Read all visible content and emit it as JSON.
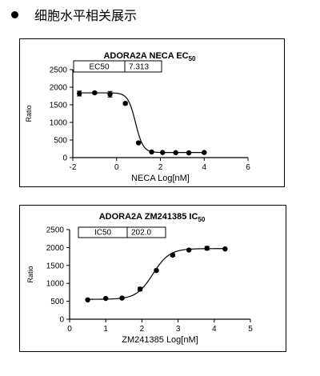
{
  "heading": {
    "text": "细胞水平相关展示"
  },
  "chart_data": [
    {
      "type": "scatter",
      "title": "ADORA2A NECA EC",
      "title_sub": "50",
      "xlabel": "NECA Log[nM]",
      "ylabel": "Ratio",
      "xlim": [
        -2,
        6
      ],
      "ylim": [
        0,
        2500
      ],
      "xticks": [
        -2,
        0,
        2,
        4,
        6
      ],
      "yticks": [
        0,
        500,
        1000,
        1500,
        2000,
        2500
      ],
      "fit_table": {
        "label": "EC50",
        "value": "7.313"
      },
      "curve": {
        "bottom": 145,
        "top": 1840,
        "logEC50": 0.864,
        "hill": -2.5
      },
      "series": [
        {
          "x": [
            -1.7,
            -1.0,
            -0.3,
            0.4,
            1.0,
            1.6,
            2.1,
            2.7,
            3.3,
            4.0
          ],
          "y": [
            1820,
            1840,
            1800,
            1540,
            420,
            160,
            145,
            140,
            135,
            145
          ],
          "err": [
            70,
            30,
            80,
            40,
            25,
            10,
            10,
            10,
            10,
            15
          ]
        }
      ]
    },
    {
      "type": "scatter",
      "title": "ADORA2A ZM241385 IC",
      "title_sub": "50",
      "xlabel": "ZM241385 Log[nM]",
      "ylabel": "Ratio",
      "xlim": [
        0,
        5
      ],
      "ylim": [
        0,
        2500
      ],
      "xticks": [
        0,
        1,
        2,
        3,
        4,
        5
      ],
      "yticks": [
        0,
        500,
        1000,
        1500,
        2000,
        2500
      ],
      "fit_table": {
        "label": "IC50",
        "value": "202.0"
      },
      "curve": {
        "bottom": 555,
        "top": 1970,
        "logEC50": 2.305,
        "hill": 1.9
      },
      "series": [
        {
          "x": [
            0.5,
            1.0,
            1.45,
            1.95,
            2.4,
            2.85,
            3.3,
            3.8,
            4.3
          ],
          "y": [
            540,
            580,
            590,
            840,
            1360,
            1790,
            1930,
            1980,
            1960
          ],
          "err": [
            10,
            15,
            10,
            50,
            20,
            40,
            15,
            50,
            10
          ]
        }
      ]
    }
  ]
}
